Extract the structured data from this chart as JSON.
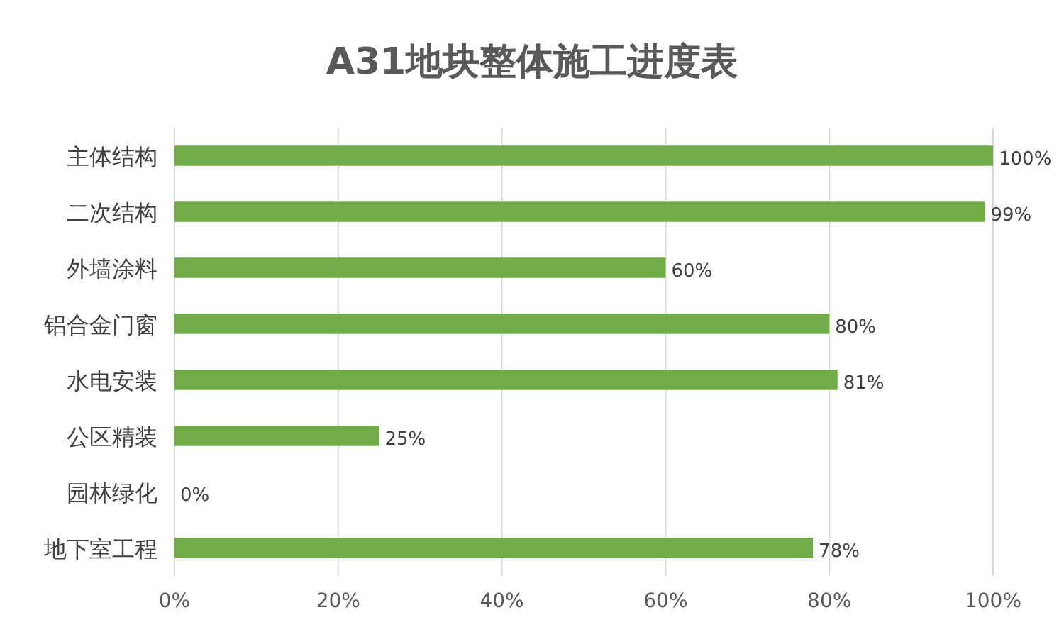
{
  "chart_data": {
    "type": "bar",
    "orientation": "horizontal",
    "title": "A31地块整体施工进度表",
    "categories": [
      "主体结构",
      "二次结构",
      "外墙涂料",
      "铝合金门窗",
      "水电安装",
      "公区精装",
      "园林绿化",
      "地下室工程"
    ],
    "series": [
      {
        "color": "#70ad47",
        "values": [
          100,
          99,
          60,
          80,
          81,
          25,
          0,
          78
        ],
        "value_labels": [
          "100%",
          "99%",
          "60%",
          "80%",
          "81%",
          "25%",
          "0%",
          "78%"
        ]
      }
    ],
    "xlim": [
      0,
      100
    ],
    "xticks": [
      {
        "value": 0,
        "label": "0%"
      },
      {
        "value": 20,
        "label": "20%"
      },
      {
        "value": 40,
        "label": "40%"
      },
      {
        "value": 60,
        "label": "60%"
      },
      {
        "value": 80,
        "label": "80%"
      },
      {
        "value": 100,
        "label": "100%"
      }
    ],
    "grid": "x"
  }
}
